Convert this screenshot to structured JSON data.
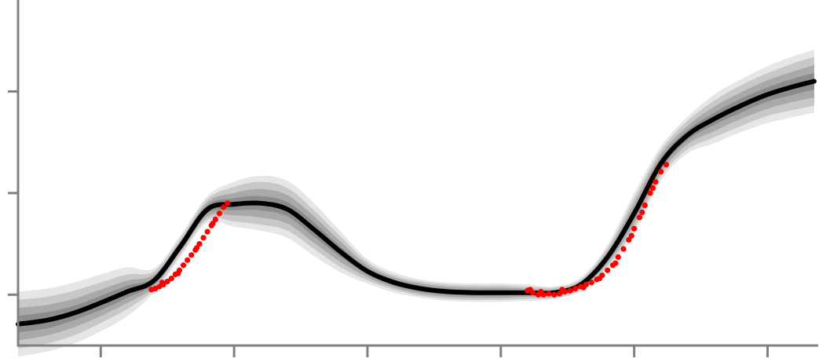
{
  "chart_data": {
    "type": "line",
    "title": "",
    "xlabel": "",
    "ylabel": "",
    "xlim": [
      -0.62,
      5.38
    ],
    "ylim": [
      -0.5,
      2.9
    ],
    "x_ticks": [
      0,
      1,
      2,
      3,
      4,
      5
    ],
    "y_ticks": [
      0,
      1,
      2
    ],
    "grid": false,
    "legend": "none",
    "colors": {
      "mean": "#000000",
      "observations": "#ff0000",
      "band_outer": "#e6e6e6",
      "band_2": "#c8c8c8",
      "band_3": "#a9a9a9",
      "band_inner": "#8c8c8c",
      "axes": "#808080"
    },
    "series": [
      {
        "x": [
          -0.62,
          -0.4,
          -0.2,
          0.0,
          0.2,
          0.4,
          0.6,
          0.8,
          1.0,
          1.2,
          1.4,
          1.6,
          1.8,
          2.0,
          2.2,
          2.4,
          2.6,
          2.8,
          3.0,
          3.2,
          3.4,
          3.6,
          3.8,
          4.0,
          4.2,
          4.4,
          4.6,
          4.8,
          5.0,
          5.2,
          5.35
        ],
        "y": [
          -0.29,
          -0.25,
          -0.18,
          -0.08,
          0.03,
          0.14,
          0.48,
          0.84,
          0.89,
          0.9,
          0.84,
          0.64,
          0.42,
          0.23,
          0.12,
          0.06,
          0.03,
          0.02,
          0.02,
          0.02,
          0.02,
          0.1,
          0.37,
          0.8,
          1.29,
          1.57,
          1.73,
          1.86,
          1.97,
          2.05,
          2.1
        ]
      }
    ],
    "bands": [
      {
        "level": "outer",
        "half_width": [
          0.32,
          0.31,
          0.3,
          0.28,
          0.24,
          0.12,
          0.11,
          0.13,
          0.22,
          0.27,
          0.28,
          0.26,
          0.2,
          0.12,
          0.1,
          0.09,
          0.09,
          0.09,
          0.09,
          0.08,
          0.06,
          0.07,
          0.12,
          0.2,
          0.17,
          0.18,
          0.24,
          0.26,
          0.28,
          0.3,
          0.31
        ]
      },
      {
        "level": "2",
        "half_width": [
          0.24,
          0.23,
          0.22,
          0.2,
          0.17,
          0.09,
          0.08,
          0.1,
          0.17,
          0.21,
          0.21,
          0.19,
          0.15,
          0.09,
          0.07,
          0.07,
          0.07,
          0.07,
          0.07,
          0.06,
          0.05,
          0.05,
          0.09,
          0.15,
          0.13,
          0.14,
          0.18,
          0.2,
          0.21,
          0.23,
          0.24
        ]
      },
      {
        "level": "3",
        "half_width": [
          0.16,
          0.15,
          0.14,
          0.13,
          0.11,
          0.06,
          0.05,
          0.07,
          0.11,
          0.14,
          0.14,
          0.13,
          0.1,
          0.06,
          0.05,
          0.05,
          0.05,
          0.05,
          0.05,
          0.04,
          0.03,
          0.03,
          0.06,
          0.1,
          0.09,
          0.09,
          0.12,
          0.13,
          0.14,
          0.15,
          0.16
        ]
      },
      {
        "level": "inner",
        "half_width": [
          0.08,
          0.08,
          0.07,
          0.07,
          0.06,
          0.03,
          0.03,
          0.04,
          0.06,
          0.07,
          0.07,
          0.07,
          0.05,
          0.03,
          0.03,
          0.03,
          0.03,
          0.03,
          0.03,
          0.02,
          0.02,
          0.02,
          0.03,
          0.05,
          0.05,
          0.05,
          0.06,
          0.07,
          0.07,
          0.08,
          0.08
        ]
      }
    ],
    "observations": [
      {
        "x": 0.38,
        "y": 0.05
      },
      {
        "x": 0.41,
        "y": 0.06
      },
      {
        "x": 0.44,
        "y": 0.08
      },
      {
        "x": 0.47,
        "y": 0.1
      },
      {
        "x": 0.5,
        "y": 0.13
      },
      {
        "x": 0.53,
        "y": 0.16
      },
      {
        "x": 0.56,
        "y": 0.2
      },
      {
        "x": 0.59,
        "y": 0.24
      },
      {
        "x": 0.62,
        "y": 0.29
      },
      {
        "x": 0.65,
        "y": 0.34
      },
      {
        "x": 0.68,
        "y": 0.39
      },
      {
        "x": 0.71,
        "y": 0.44
      },
      {
        "x": 0.74,
        "y": 0.5
      },
      {
        "x": 0.77,
        "y": 0.56
      },
      {
        "x": 0.8,
        "y": 0.62
      },
      {
        "x": 0.83,
        "y": 0.68
      },
      {
        "x": 0.86,
        "y": 0.74
      },
      {
        "x": 0.89,
        "y": 0.8
      },
      {
        "x": 0.92,
        "y": 0.86
      },
      {
        "x": 0.95,
        "y": 0.9
      },
      {
        "x": 0.46,
        "y": 0.12
      },
      {
        "x": 0.58,
        "y": 0.21
      },
      {
        "x": 0.72,
        "y": 0.46
      },
      {
        "x": 0.84,
        "y": 0.7
      },
      {
        "x": 3.2,
        "y": 0.04
      },
      {
        "x": 3.24,
        "y": 0.02
      },
      {
        "x": 3.28,
        "y": 0.0
      },
      {
        "x": 3.32,
        "y": 0.0
      },
      {
        "x": 3.36,
        "y": 0.01
      },
      {
        "x": 3.4,
        "y": 0.0
      },
      {
        "x": 3.44,
        "y": 0.01
      },
      {
        "x": 3.48,
        "y": 0.03
      },
      {
        "x": 3.52,
        "y": 0.04
      },
      {
        "x": 3.56,
        "y": 0.06
      },
      {
        "x": 3.6,
        "y": 0.08
      },
      {
        "x": 3.64,
        "y": 0.1
      },
      {
        "x": 3.68,
        "y": 0.12
      },
      {
        "x": 3.72,
        "y": 0.15
      },
      {
        "x": 3.76,
        "y": 0.19
      },
      {
        "x": 3.8,
        "y": 0.24
      },
      {
        "x": 3.84,
        "y": 0.29
      },
      {
        "x": 3.88,
        "y": 0.37
      },
      {
        "x": 3.92,
        "y": 0.45
      },
      {
        "x": 3.96,
        "y": 0.54
      },
      {
        "x": 4.0,
        "y": 0.65
      },
      {
        "x": 4.04,
        "y": 0.76
      },
      {
        "x": 4.08,
        "y": 0.88
      },
      {
        "x": 4.12,
        "y": 1.0
      },
      {
        "x": 4.16,
        "y": 1.11
      },
      {
        "x": 4.2,
        "y": 1.21
      },
      {
        "x": 4.24,
        "y": 1.28
      },
      {
        "x": 3.22,
        "y": 0.05
      },
      {
        "x": 3.3,
        "y": 0.03
      },
      {
        "x": 3.46,
        "y": 0.05
      },
      {
        "x": 3.62,
        "y": 0.07
      },
      {
        "x": 3.74,
        "y": 0.16
      },
      {
        "x": 3.86,
        "y": 0.31
      },
      {
        "x": 3.98,
        "y": 0.58
      },
      {
        "x": 4.06,
        "y": 0.81
      },
      {
        "x": 4.14,
        "y": 1.05
      }
    ]
  }
}
